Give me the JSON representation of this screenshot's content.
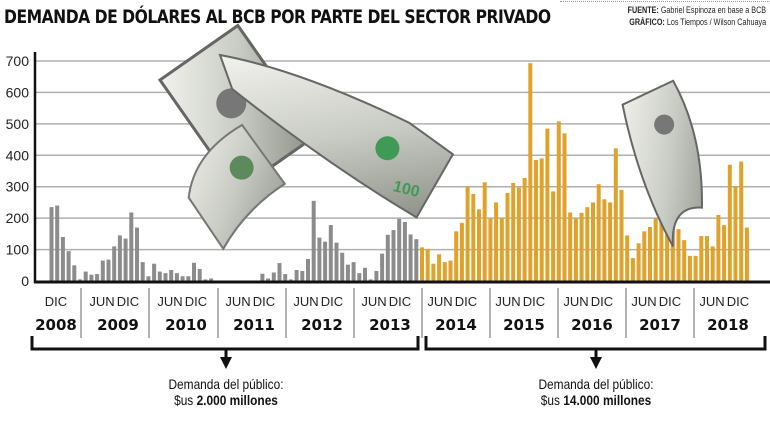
{
  "title": "DEMANDA DE DÓLARES AL BCB POR PARTE DEL SECTOR PRIVADO",
  "source": {
    "fuente_label": "FUENTE:",
    "fuente": "Gabriel Espinoza en base a BCB",
    "grafico_label": "GRÁFICO:",
    "grafico": "Los Tiempos / Wilson Cahuaya"
  },
  "colors": {
    "period1": "#8c8c8c",
    "period2": "#e0a22a",
    "grid": "#b0b0b0",
    "axis": "#111111"
  },
  "chart_data": {
    "type": "bar",
    "title": "DEMANDA DE DÓLARES AL BCB POR PARTE DEL SECTOR PRIVADO",
    "xlabel": "",
    "ylabel": "",
    "ylim": [
      0,
      700
    ],
    "yticks": [
      "0",
      "100",
      "200",
      "300",
      "400",
      "500",
      "600",
      "700"
    ],
    "grid": true,
    "frequency": "monthly",
    "year_groups": [
      {
        "year": "2008",
        "months": [
          "DIC"
        ]
      },
      {
        "year": "2009",
        "months": [
          "JUN",
          "DIC"
        ]
      },
      {
        "year": "2010",
        "months": [
          "JUN",
          "DIC"
        ]
      },
      {
        "year": "2011",
        "months": [
          "JUN",
          "DIC"
        ]
      },
      {
        "year": "2012",
        "months": [
          "JUN",
          "DIC"
        ]
      },
      {
        "year": "2013",
        "months": [
          "JUN",
          "DIC"
        ]
      },
      {
        "year": "2014",
        "months": [
          "JUN",
          "DIC"
        ]
      },
      {
        "year": "2015",
        "months": [
          "JUN",
          "DIC"
        ]
      },
      {
        "year": "2016",
        "months": [
          "JUN",
          "DIC"
        ]
      },
      {
        "year": "2017",
        "months": [
          "JUN",
          "DIC"
        ]
      },
      {
        "year": "2018",
        "months": [
          "JUN",
          "DIC"
        ]
      }
    ],
    "series": [
      {
        "period": "2008-2013",
        "color": "#8c8c8c",
        "values": [
          235,
          240,
          140,
          95,
          50,
          5,
          30,
          20,
          22,
          65,
          68,
          110,
          145,
          135,
          218,
          170,
          60,
          15,
          55,
          30,
          25,
          35,
          25,
          15,
          15,
          58,
          38,
          5,
          8,
          0,
          0,
          0,
          0,
          0,
          0,
          0,
          0,
          23,
          8,
          27,
          57,
          22,
          5,
          35,
          32,
          70,
          255,
          138,
          125,
          178,
          122,
          90,
          52,
          60,
          25,
          42,
          5,
          32,
          87,
          147,
          162,
          198,
          188,
          148,
          133
        ]
      },
      {
        "period": "2014-2018",
        "color": "#e0a22a",
        "values": [
          107,
          102,
          55,
          85,
          60,
          65,
          158,
          185,
          300,
          277,
          228,
          314,
          200,
          250,
          200,
          280,
          312,
          297,
          328,
          693,
          385,
          390,
          485,
          285,
          508,
          470,
          218,
          200,
          217,
          235,
          250,
          308,
          260,
          250,
          422,
          290,
          145,
          73,
          120,
          158,
          172,
          200,
          205,
          265,
          203,
          165,
          130,
          80,
          80,
          143,
          143,
          110,
          210,
          178,
          370,
          300,
          380,
          170
        ]
      }
    ]
  },
  "annotations": [
    {
      "line1": "Demanda del público:",
      "prefix": "$us",
      "amount": "2.000 millones"
    },
    {
      "line1": "Demanda del público:",
      "prefix": "$us",
      "amount": "14.000 millones"
    }
  ]
}
